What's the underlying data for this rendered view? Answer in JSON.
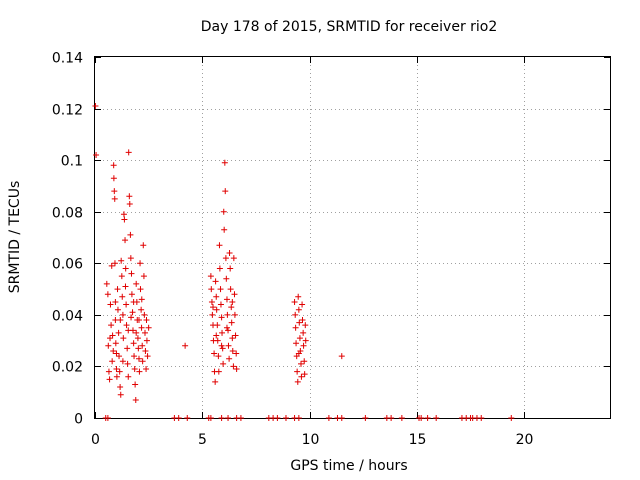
{
  "chart_data": {
    "type": "scatter",
    "title": "Day 178 of 2015, SRMTID for receiver rio2",
    "xlabel": "GPS time / hours",
    "ylabel": "SRMTID / TECUs",
    "xlim": [
      0,
      24
    ],
    "ylim": [
      0,
      0.14
    ],
    "xticks": [
      0,
      5,
      10,
      15,
      20
    ],
    "xtick_labels": [
      "0",
      "5",
      "10",
      "15",
      "20"
    ],
    "yticks": [
      0,
      0.02,
      0.04,
      0.06,
      0.08,
      0.1,
      0.12,
      0.14
    ],
    "ytick_labels": [
      "0",
      "0.02",
      "0.04",
      "0.06",
      "0.08",
      "0.1",
      "0.12",
      "0.14"
    ],
    "grid": true,
    "marker": "+",
    "color": "#e00000",
    "series": [
      {
        "name": "SRMTID",
        "points": [
          [
            0.02,
            0.121
          ],
          [
            0.05,
            0.102
          ],
          [
            0.55,
            0.052
          ],
          [
            0.6,
            0.048
          ],
          [
            0.62,
            0.028
          ],
          [
            0.65,
            0.018
          ],
          [
            0.68,
            0.015
          ],
          [
            0.72,
            0.044
          ],
          [
            0.75,
            0.036
          ],
          [
            0.78,
            0.059
          ],
          [
            0.8,
            0.022
          ],
          [
            0.82,
            0.032
          ],
          [
            0.85,
            0.026
          ],
          [
            0.87,
            0.098
          ],
          [
            0.88,
            0.093
          ],
          [
            0.9,
            0.088
          ],
          [
            0.92,
            0.085
          ],
          [
            0.93,
            0.06
          ],
          [
            0.95,
            0.038
          ],
          [
            0.97,
            0.029
          ],
          [
            1.0,
            0.019
          ],
          [
            1.02,
            0.016
          ],
          [
            1.05,
            0.05
          ],
          [
            1.07,
            0.042
          ],
          [
            1.1,
            0.033
          ],
          [
            1.12,
            0.024
          ],
          [
            1.15,
            0.018
          ],
          [
            1.17,
            0.012
          ],
          [
            1.2,
            0.009
          ],
          [
            1.22,
            0.061
          ],
          [
            1.25,
            0.055
          ],
          [
            1.27,
            0.047
          ],
          [
            1.3,
            0.04
          ],
          [
            1.32,
            0.031
          ],
          [
            1.35,
            0.079
          ],
          [
            1.37,
            0.077
          ],
          [
            1.4,
            0.069
          ],
          [
            1.42,
            0.051
          ],
          [
            1.45,
            0.044
          ],
          [
            1.47,
            0.036
          ],
          [
            1.5,
            0.027
          ],
          [
            1.52,
            0.021
          ],
          [
            1.55,
            0.016
          ],
          [
            1.57,
            0.103
          ],
          [
            1.6,
            0.086
          ],
          [
            1.62,
            0.083
          ],
          [
            1.65,
            0.071
          ],
          [
            1.67,
            0.062
          ],
          [
            1.7,
            0.056
          ],
          [
            1.72,
            0.048
          ],
          [
            1.75,
            0.041
          ],
          [
            1.77,
            0.034
          ],
          [
            1.8,
            0.029
          ],
          [
            1.82,
            0.024
          ],
          [
            1.85,
            0.019
          ],
          [
            1.87,
            0.013
          ],
          [
            1.9,
            0.007
          ],
          [
            1.92,
            0.052
          ],
          [
            1.95,
            0.045
          ],
          [
            1.97,
            0.038
          ],
          [
            2.0,
            0.031
          ],
          [
            2.02,
            0.027
          ],
          [
            2.05,
            0.023
          ],
          [
            2.07,
            0.018
          ],
          [
            2.1,
            0.06
          ],
          [
            2.12,
            0.05
          ],
          [
            2.15,
            0.042
          ],
          [
            2.17,
            0.035
          ],
          [
            2.2,
            0.028
          ],
          [
            2.22,
            0.022
          ],
          [
            2.25,
            0.067
          ],
          [
            2.28,
            0.055
          ],
          [
            2.3,
            0.04
          ],
          [
            2.33,
            0.033
          ],
          [
            2.35,
            0.026
          ],
          [
            2.38,
            0.019
          ],
          [
            2.4,
            0.038
          ],
          [
            2.42,
            0.03
          ],
          [
            2.45,
            0.024
          ],
          [
            2.5,
            0.035
          ],
          [
            0.7,
            0.031
          ],
          [
            0.95,
            0.045
          ],
          [
            1.18,
            0.038
          ],
          [
            1.43,
            0.058
          ],
          [
            1.68,
            0.039
          ],
          [
            1.92,
            0.033
          ],
          [
            2.18,
            0.046
          ],
          [
            1.3,
            0.022
          ],
          [
            1.55,
            0.034
          ],
          [
            1.8,
            0.045
          ],
          [
            2.05,
            0.038
          ],
          [
            1.0,
            0.025
          ],
          [
            4.2,
            0.028
          ],
          [
            11.5,
            0.024
          ],
          [
            5.4,
            0.055
          ],
          [
            5.42,
            0.05
          ],
          [
            5.45,
            0.045
          ],
          [
            5.47,
            0.04
          ],
          [
            5.5,
            0.036
          ],
          [
            5.52,
            0.03
          ],
          [
            5.55,
            0.025
          ],
          [
            5.57,
            0.018
          ],
          [
            5.6,
            0.014
          ],
          [
            5.62,
            0.053
          ],
          [
            5.65,
            0.047
          ],
          [
            5.67,
            0.042
          ],
          [
            5.7,
            0.036
          ],
          [
            5.72,
            0.03
          ],
          [
            5.75,
            0.024
          ],
          [
            5.77,
            0.018
          ],
          [
            5.8,
            0.067
          ],
          [
            5.82,
            0.058
          ],
          [
            5.85,
            0.05
          ],
          [
            5.87,
            0.044
          ],
          [
            5.9,
            0.039
          ],
          [
            5.92,
            0.033
          ],
          [
            5.95,
            0.027
          ],
          [
            5.97,
            0.021
          ],
          [
            6.0,
            0.08
          ],
          [
            6.02,
            0.073
          ],
          [
            6.05,
            0.099
          ],
          [
            6.07,
            0.088
          ],
          [
            6.1,
            0.062
          ],
          [
            6.12,
            0.054
          ],
          [
            6.15,
            0.046
          ],
          [
            6.17,
            0.04
          ],
          [
            6.2,
            0.034
          ],
          [
            6.22,
            0.028
          ],
          [
            6.25,
            0.023
          ],
          [
            6.27,
            0.064
          ],
          [
            6.3,
            0.058
          ],
          [
            6.32,
            0.05
          ],
          [
            6.35,
            0.043
          ],
          [
            6.37,
            0.037
          ],
          [
            6.4,
            0.031
          ],
          [
            6.42,
            0.026
          ],
          [
            6.45,
            0.02
          ],
          [
            6.47,
            0.062
          ],
          [
            6.5,
            0.048
          ],
          [
            6.52,
            0.04
          ],
          [
            6.55,
            0.032
          ],
          [
            6.58,
            0.025
          ],
          [
            6.6,
            0.019
          ],
          [
            5.65,
            0.032
          ],
          [
            5.9,
            0.028
          ],
          [
            6.15,
            0.035
          ],
          [
            6.4,
            0.045
          ],
          [
            5.5,
            0.043
          ],
          [
            9.3,
            0.045
          ],
          [
            9.33,
            0.04
          ],
          [
            9.35,
            0.035
          ],
          [
            9.37,
            0.029
          ],
          [
            9.4,
            0.024
          ],
          [
            9.42,
            0.018
          ],
          [
            9.45,
            0.014
          ],
          [
            9.47,
            0.047
          ],
          [
            9.5,
            0.042
          ],
          [
            9.52,
            0.037
          ],
          [
            9.55,
            0.031
          ],
          [
            9.57,
            0.026
          ],
          [
            9.6,
            0.021
          ],
          [
            9.62,
            0.016
          ],
          [
            9.65,
            0.044
          ],
          [
            9.67,
            0.038
          ],
          [
            9.7,
            0.033
          ],
          [
            9.72,
            0.028
          ],
          [
            9.75,
            0.022
          ],
          [
            9.77,
            0.017
          ],
          [
            9.8,
            0.036
          ],
          [
            9.82,
            0.03
          ],
          [
            9.5,
            0.025
          ],
          [
            0.5,
            0.0
          ],
          [
            0.6,
            0.0
          ],
          [
            3.7,
            0.0
          ],
          [
            3.9,
            0.0
          ],
          [
            4.3,
            0.0
          ],
          [
            5.3,
            0.0
          ],
          [
            5.4,
            0.0
          ],
          [
            5.9,
            0.0
          ],
          [
            6.2,
            0.0
          ],
          [
            6.6,
            0.0
          ],
          [
            6.8,
            0.0
          ],
          [
            8.1,
            0.0
          ],
          [
            8.3,
            0.0
          ],
          [
            8.5,
            0.0
          ],
          [
            8.9,
            0.0
          ],
          [
            9.3,
            0.0
          ],
          [
            9.5,
            0.0
          ],
          [
            10.9,
            0.0
          ],
          [
            11.3,
            0.0
          ],
          [
            11.5,
            0.0
          ],
          [
            12.6,
            0.0
          ],
          [
            13.6,
            0.0
          ],
          [
            13.8,
            0.0
          ],
          [
            14.3,
            0.0
          ],
          [
            15.1,
            0.0
          ],
          [
            15.2,
            0.0
          ],
          [
            15.5,
            0.0
          ],
          [
            15.9,
            0.0
          ],
          [
            17.1,
            0.0
          ],
          [
            17.3,
            0.0
          ],
          [
            17.5,
            0.0
          ],
          [
            17.6,
            0.0
          ],
          [
            17.8,
            0.0
          ],
          [
            18.0,
            0.0
          ],
          [
            19.4,
            0.0
          ]
        ]
      }
    ]
  }
}
